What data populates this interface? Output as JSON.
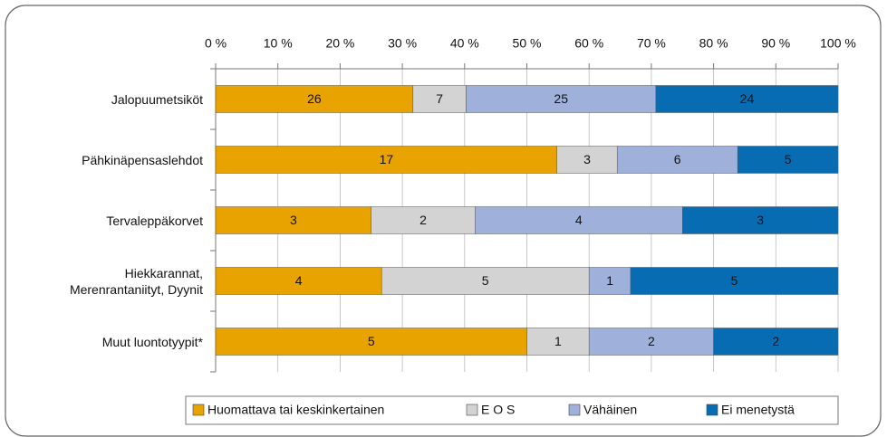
{
  "chart_data": {
    "type": "stacked_bar_100",
    "orientation": "horizontal",
    "categories": [
      "Jalopuumetsiköt",
      "Pähkinäpensaslehdot",
      "Tervaleppäkorvet",
      "Hiekkarannat, Merenrantaniityt, Dyynit",
      "Muut luontotyypit*"
    ],
    "series": [
      {
        "name": "Huomattava tai keskinkertainen",
        "color": "#e8a300",
        "values": [
          26,
          17,
          3,
          4,
          5
        ]
      },
      {
        "name": "E O S",
        "color": "#d3d3d3",
        "values": [
          7,
          3,
          2,
          5,
          1
        ]
      },
      {
        "name": "Vähäinen",
        "color": "#9fb1db",
        "values": [
          25,
          6,
          4,
          1,
          2
        ]
      },
      {
        "name": "Ei menetystä",
        "color": "#086cb3",
        "values": [
          24,
          5,
          3,
          5,
          2
        ]
      }
    ],
    "xlim": [
      0,
      100
    ],
    "xticks": [
      {
        "value": 0,
        "label": "0 %"
      },
      {
        "value": 10,
        "label": "10 %"
      },
      {
        "value": 20,
        "label": "20 %"
      },
      {
        "value": 30,
        "label": "30 %"
      },
      {
        "value": 40,
        "label": "40 %"
      },
      {
        "value": 50,
        "label": "50 %"
      },
      {
        "value": 60,
        "label": "60 %"
      },
      {
        "value": 70,
        "label": "70 %"
      },
      {
        "value": 80,
        "label": "80 %"
      },
      {
        "value": 90,
        "label": "90 %"
      },
      {
        "value": 100,
        "label": "100 %"
      }
    ],
    "grid": true,
    "legend": "bottom"
  }
}
